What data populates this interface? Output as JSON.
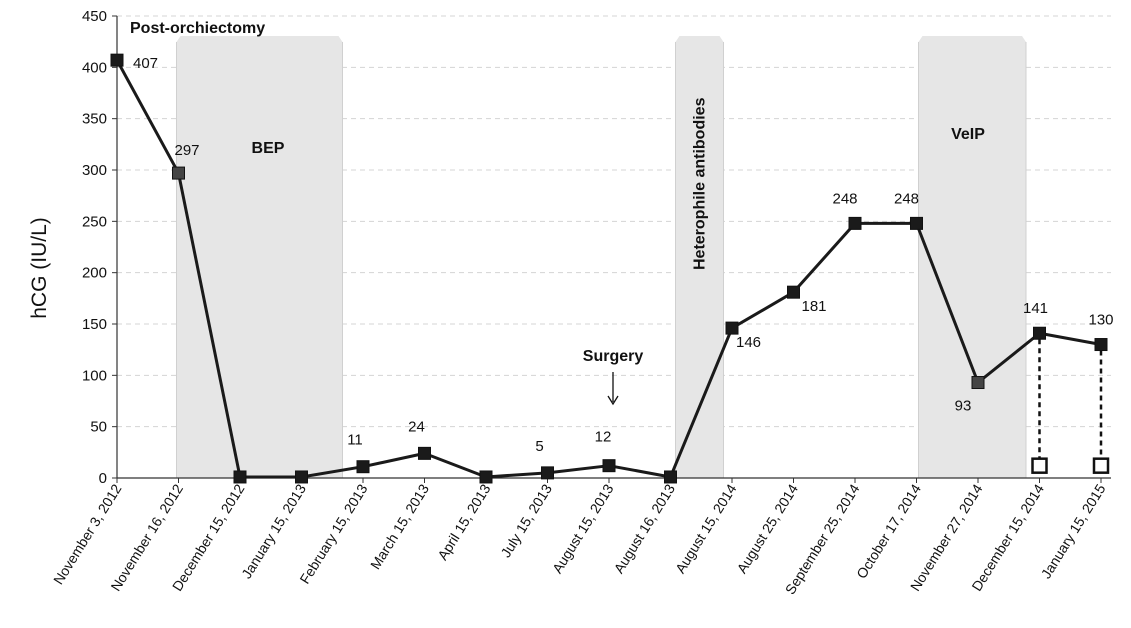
{
  "chart_data": {
    "type": "line",
    "title": "",
    "xlabel": "",
    "ylabel": "hCG (IU/L)",
    "ylim": [
      0,
      450
    ],
    "yticks": [
      0,
      50,
      100,
      150,
      200,
      250,
      300,
      350,
      400,
      450
    ],
    "grid": "horizontal-dashed",
    "categories": [
      "November 3, 2012",
      "November 16, 2012",
      "December 15, 2012",
      "January 15, 2013",
      "February 15, 2013",
      "March 15, 2013",
      "April 15, 2013",
      "July 15, 2013",
      "August 15, 2013",
      "August 16, 2013",
      "August 15, 2014",
      "August 25, 2014",
      "September 25, 2014",
      "October 17, 2014",
      "November 27, 2014",
      "December 15, 2014",
      "January 15, 2015"
    ],
    "series": [
      {
        "values": [
          407,
          297,
          1,
          1,
          11,
          24,
          1,
          5,
          12,
          1,
          146,
          181,
          248,
          248,
          93,
          141,
          130
        ],
        "labels": [
          "407",
          "297",
          "",
          "",
          "11",
          "24",
          "",
          "5",
          "12",
          "",
          "146",
          "181",
          "248",
          "248",
          "93",
          "141",
          "130"
        ],
        "color": "#1a1a1a",
        "marker": "filled-square"
      },
      {
        "values": [
          null,
          null,
          null,
          null,
          null,
          null,
          null,
          null,
          null,
          null,
          null,
          null,
          null,
          null,
          null,
          12,
          12
        ],
        "color": "#1a1a1a",
        "marker": "open-square",
        "connector": "dashed-vertical"
      }
    ],
    "shaded_periods": [
      {
        "label": "BEP",
        "from": "November 16, 2012",
        "to": "January 15, 2013"
      },
      {
        "label": "Heterophile antibodies",
        "from": "August 16, 2013",
        "to": "August 15, 2014"
      },
      {
        "label": "VeIP",
        "from": "October 17, 2014",
        "to": "November 27, 2014"
      }
    ],
    "annotations": [
      {
        "text": "Post-orchiectomy"
      },
      {
        "text": "Surgery",
        "at": "August 15, 2013",
        "arrow": "down"
      }
    ]
  }
}
